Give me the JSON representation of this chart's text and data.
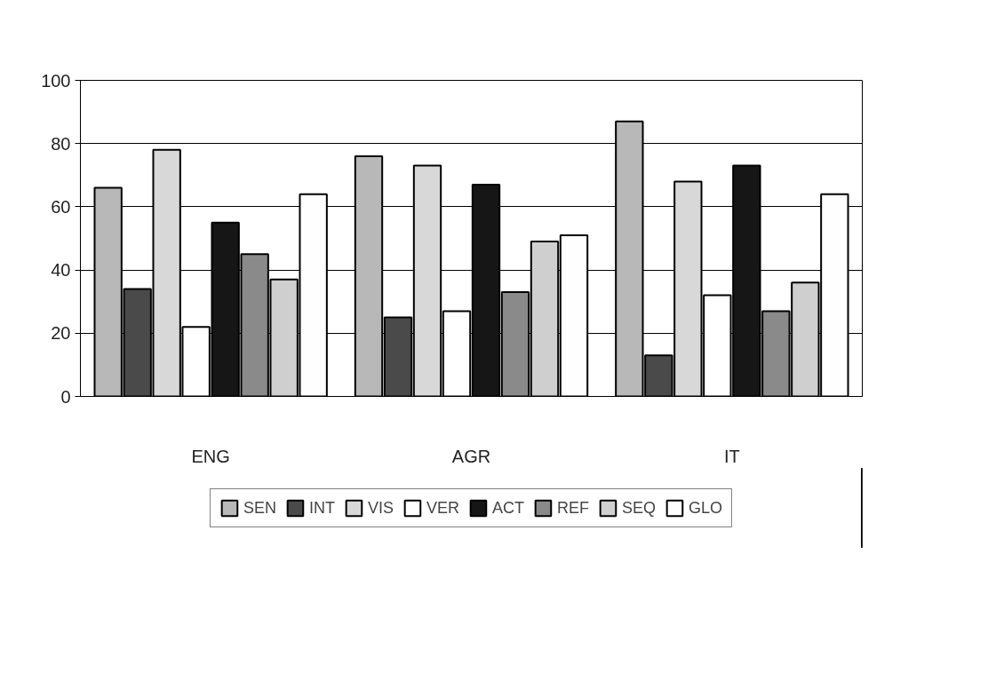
{
  "chart_data": {
    "type": "bar",
    "categories": [
      "ENG",
      "AGR",
      "IT"
    ],
    "series": [
      {
        "name": "SEN",
        "color": "#b8b8b8",
        "values": [
          66,
          76,
          87
        ]
      },
      {
        "name": "INT",
        "color": "#4a4a4a",
        "values": [
          34,
          25,
          13
        ]
      },
      {
        "name": "VIS",
        "color": "#d8d8d8",
        "values": [
          78,
          73,
          68
        ]
      },
      {
        "name": "VER",
        "color": "#ffffff",
        "values": [
          22,
          27,
          32
        ]
      },
      {
        "name": "ACT",
        "color": "#161616",
        "values": [
          55,
          67,
          73
        ]
      },
      {
        "name": "REF",
        "color": "#8a8a8a",
        "values": [
          45,
          33,
          27
        ]
      },
      {
        "name": "SEQ",
        "color": "#cfcfcf",
        "values": [
          37,
          49,
          36
        ]
      },
      {
        "name": "GLO",
        "color": "#fefefe",
        "values": [
          64,
          51,
          64
        ]
      }
    ],
    "ylim": [
      0,
      100
    ],
    "yticks": [
      0,
      20,
      40,
      60,
      80,
      100
    ],
    "grid": "y",
    "legend": "bottom"
  }
}
